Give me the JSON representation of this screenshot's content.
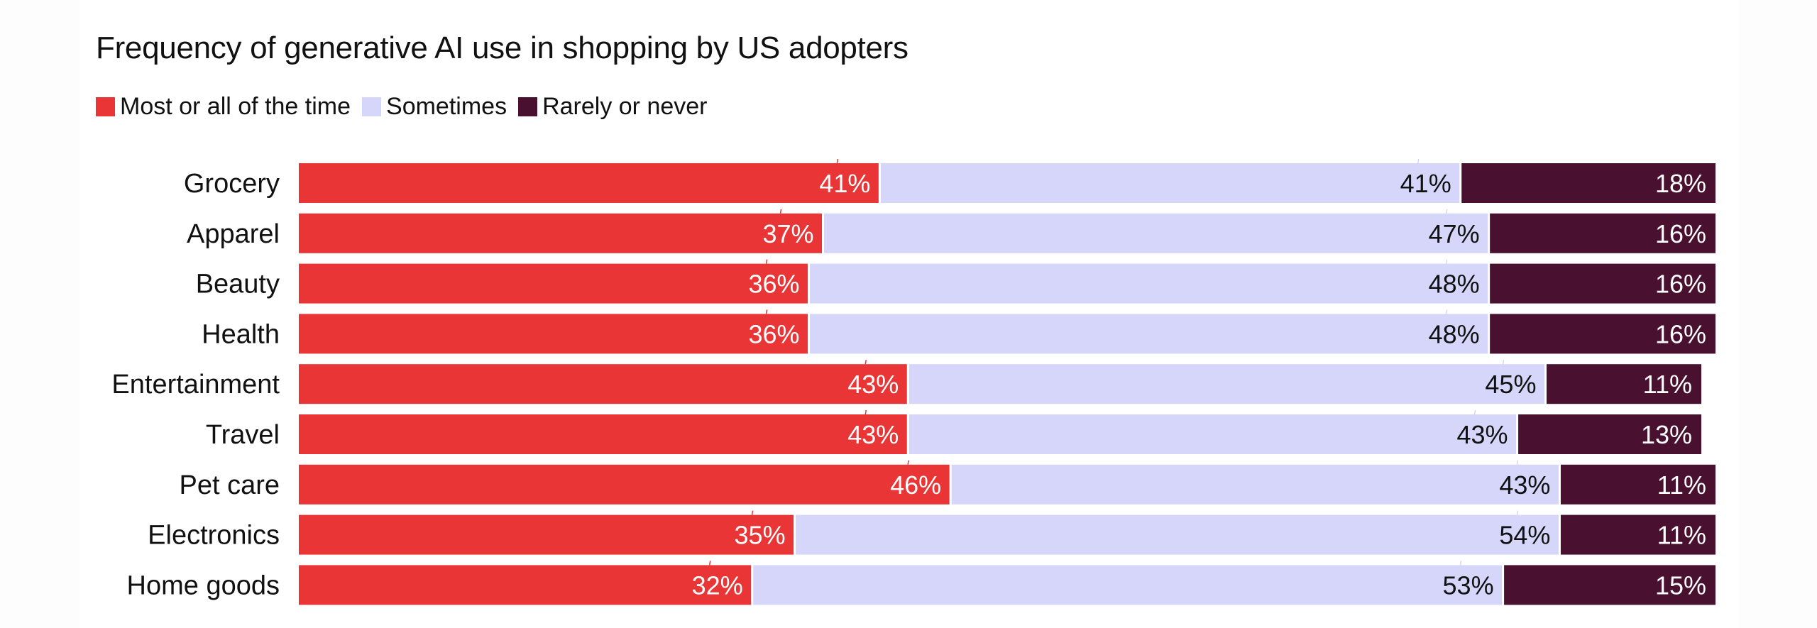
{
  "chart_data": {
    "type": "bar",
    "orientation": "horizontal",
    "stacked": true,
    "title": "Frequency of generative AI use in shopping by US adopters",
    "xlabel": "",
    "ylabel": "",
    "xlim": [
      0,
      100
    ],
    "grid": false,
    "legend_position": "top-left",
    "value_suffix": "%",
    "categories": [
      "Grocery",
      "Apparel",
      "Beauty",
      "Health",
      "Entertainment",
      "Travel",
      "Pet care",
      "Electronics",
      "Home goods"
    ],
    "series": [
      {
        "name": "Most or all of the time",
        "color": "#e93535",
        "label_color": "#ffffff",
        "values": [
          41,
          37,
          36,
          36,
          43,
          43,
          46,
          35,
          32
        ]
      },
      {
        "name": "Sometimes",
        "color": "#d5d6fa",
        "label_color": "#111111",
        "values": [
          41,
          47,
          48,
          48,
          45,
          43,
          43,
          54,
          53
        ]
      },
      {
        "name": "Rarely or never",
        "color": "#4a1030",
        "label_color": "#ffffff",
        "values": [
          18,
          16,
          16,
          16,
          11,
          13,
          11,
          11,
          15
        ]
      }
    ]
  }
}
